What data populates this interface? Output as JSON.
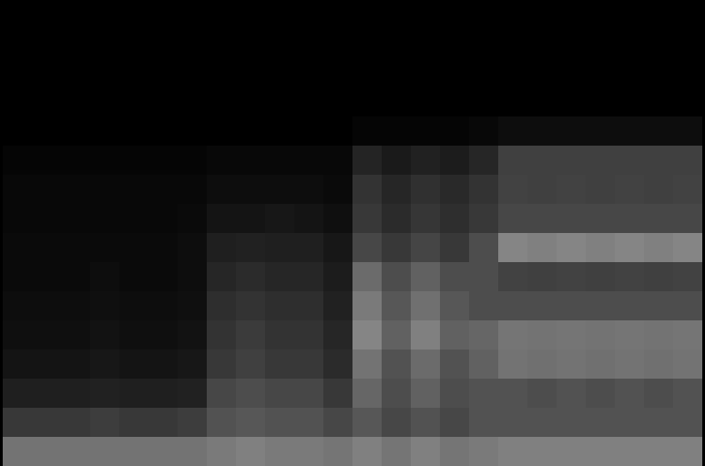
{
  "chart_data": {
    "type": "heatmap",
    "tick_labels": false,
    "color_range": [
      0,
      100
    ],
    "cells": [
      [
        0,
        0,
        0,
        0,
        0,
        0,
        0,
        0,
        0,
        0,
        0,
        0,
        0,
        0,
        0,
        0,
        0,
        0,
        0,
        0,
        0,
        0,
        0,
        0
      ],
      [
        0,
        0,
        0,
        0,
        0,
        0,
        0,
        0,
        0,
        0,
        0,
        0,
        0,
        0,
        0,
        0,
        0,
        0,
        0,
        0,
        0,
        0,
        0,
        0
      ],
      [
        0,
        0,
        0,
        0,
        0,
        0,
        0,
        0,
        0,
        0,
        0,
        0,
        0,
        0,
        0,
        0,
        0,
        0,
        0,
        0,
        0,
        0,
        0,
        0
      ],
      [
        0,
        0,
        0,
        0,
        0,
        0,
        0,
        0,
        0,
        0,
        0,
        0,
        0,
        0,
        0,
        0,
        0,
        0,
        0,
        0,
        0,
        0,
        0,
        0
      ],
      [
        0,
        0,
        0,
        0,
        0,
        0,
        0,
        0,
        0,
        0,
        0,
        0,
        2,
        2,
        2,
        2,
        3,
        5,
        5,
        5,
        5,
        5,
        5,
        5
      ],
      [
        2,
        2,
        2,
        2,
        2,
        2,
        2,
        3,
        3,
        3,
        3,
        3,
        14,
        10,
        13,
        11,
        15,
        25,
        25,
        25,
        25,
        25,
        25,
        25
      ],
      [
        3,
        3,
        3,
        3,
        3,
        3,
        3,
        5,
        5,
        5,
        5,
        4,
        20,
        15,
        19,
        16,
        20,
        26,
        25,
        26,
        25,
        26,
        25,
        26
      ],
      [
        3,
        3,
        3,
        3,
        3,
        3,
        4,
        8,
        8,
        9,
        8,
        6,
        22,
        17,
        21,
        18,
        22,
        28,
        28,
        28,
        28,
        28,
        28,
        28
      ],
      [
        4,
        4,
        4,
        4,
        4,
        4,
        5,
        12,
        13,
        12,
        12,
        9,
        28,
        22,
        27,
        22,
        30,
        52,
        50,
        52,
        50,
        52,
        50,
        52
      ],
      [
        4,
        4,
        4,
        5,
        4,
        4,
        5,
        15,
        17,
        15,
        15,
        11,
        42,
        30,
        38,
        30,
        30,
        26,
        25,
        26,
        25,
        26,
        25,
        26
      ],
      [
        5,
        5,
        5,
        6,
        5,
        5,
        6,
        18,
        20,
        18,
        18,
        13,
        48,
        34,
        44,
        34,
        30,
        30,
        30,
        30,
        30,
        30,
        30,
        30
      ],
      [
        6,
        6,
        6,
        7,
        6,
        6,
        7,
        20,
        23,
        20,
        20,
        15,
        52,
        38,
        50,
        38,
        40,
        46,
        45,
        46,
        45,
        46,
        45,
        46
      ],
      [
        8,
        8,
        8,
        9,
        8,
        8,
        9,
        22,
        25,
        22,
        22,
        17,
        45,
        32,
        42,
        32,
        38,
        45,
        44,
        45,
        44,
        45,
        44,
        45
      ],
      [
        12,
        12,
        12,
        13,
        12,
        12,
        13,
        28,
        30,
        28,
        28,
        22,
        40,
        30,
        38,
        30,
        32,
        32,
        30,
        32,
        30,
        32,
        30,
        32
      ],
      [
        22,
        22,
        22,
        24,
        22,
        22,
        24,
        32,
        34,
        32,
        32,
        28,
        34,
        28,
        32,
        28,
        32,
        32,
        32,
        32,
        32,
        32,
        32,
        32
      ],
      [
        45,
        45,
        45,
        45,
        45,
        45,
        45,
        48,
        50,
        48,
        48,
        46,
        50,
        46,
        50,
        46,
        48,
        50,
        50,
        50,
        50,
        50,
        50,
        50
      ]
    ]
  }
}
